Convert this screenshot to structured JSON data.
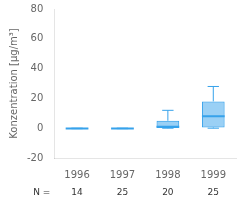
{
  "chart_data": {
    "type": "box",
    "categories": [
      "1996",
      "1997",
      "1998",
      "1999"
    ],
    "boxes": [
      {
        "whislo": -0.3,
        "q1": -0.3,
        "med": -0.15,
        "q3": -0.1,
        "whishi": 0.0
      },
      {
        "whislo": -0.3,
        "q1": -0.3,
        "med": -0.15,
        "q3": -0.1,
        "whishi": 0.0
      },
      {
        "whislo": 0.0,
        "q1": 0.2,
        "med": 1.0,
        "q3": 5.0,
        "whishi": 12.0
      },
      {
        "whislo": 0.0,
        "q1": 0.5,
        "med": 8.0,
        "q3": 18.0,
        "whishi": 28.0
      }
    ],
    "n": [
      14,
      25,
      20,
      25
    ],
    "annotations": [
      "N ="
    ],
    "y_label": "Konzentration [µg/m³]",
    "ylim": [
      -20,
      80
    ],
    "yticks": [
      -20,
      0,
      20,
      40,
      60,
      80
    ],
    "grid": false
  }
}
